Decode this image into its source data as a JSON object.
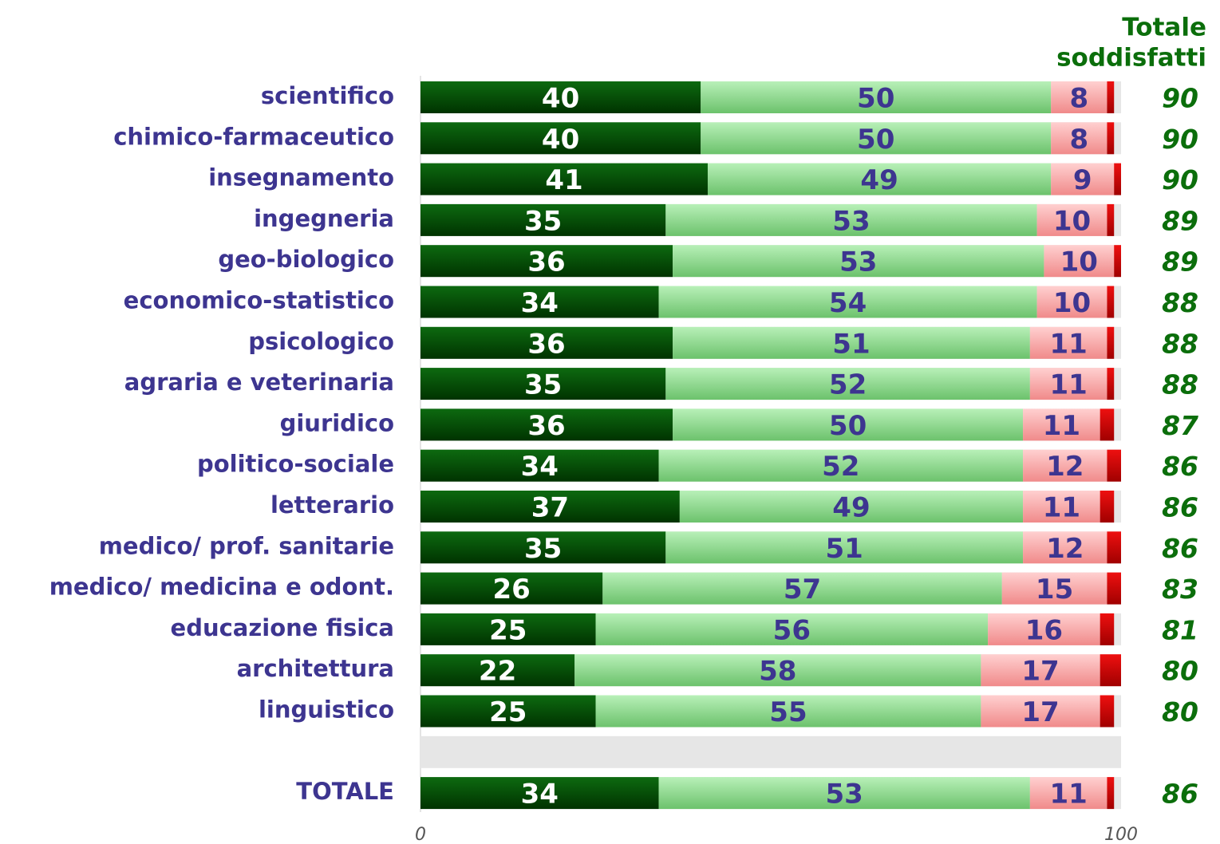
{
  "chart_data": {
    "type": "bar",
    "totals_title": [
      "Totale",
      "soddisfatti"
    ],
    "categories": [
      "scientifico",
      "chimico-farmaceutico",
      "insegnamento",
      "ingegneria",
      "geo-biologico",
      "economico-statistico",
      "psicologico",
      "agraria e veterinaria",
      "giuridico",
      "politico-sociale",
      "letterario",
      "medico/ prof. sanitarie",
      "medico/ medicina e odont.",
      "educazione fisica",
      "architettura",
      "linguistico",
      null,
      "TOTALE"
    ],
    "series": [
      {
        "color": "dark-green",
        "label_color": "#ffffff",
        "values": [
          40,
          40,
          41,
          35,
          36,
          34,
          36,
          35,
          36,
          34,
          37,
          35,
          26,
          25,
          22,
          25,
          null,
          34
        ]
      },
      {
        "color": "light-green",
        "label_color": "#3d3590",
        "values": [
          50,
          50,
          49,
          53,
          53,
          54,
          51,
          52,
          50,
          52,
          49,
          51,
          57,
          56,
          58,
          55,
          null,
          53
        ]
      },
      {
        "color": "pink",
        "label_color": "#3d3590",
        "values": [
          8,
          8,
          9,
          10,
          10,
          10,
          11,
          11,
          11,
          12,
          11,
          12,
          15,
          16,
          17,
          17,
          null,
          11
        ]
      },
      {
        "color": "red",
        "values": [
          1,
          1,
          1,
          1,
          1,
          1,
          1,
          1,
          2,
          2,
          2,
          2,
          2,
          2,
          3,
          2,
          null,
          1
        ]
      }
    ],
    "totals": [
      90,
      90,
      90,
      89,
      89,
      88,
      88,
      88,
      87,
      86,
      86,
      86,
      83,
      81,
      80,
      80,
      null,
      86
    ],
    "xlim": [
      0,
      100
    ],
    "xticks": [
      0,
      100
    ]
  }
}
